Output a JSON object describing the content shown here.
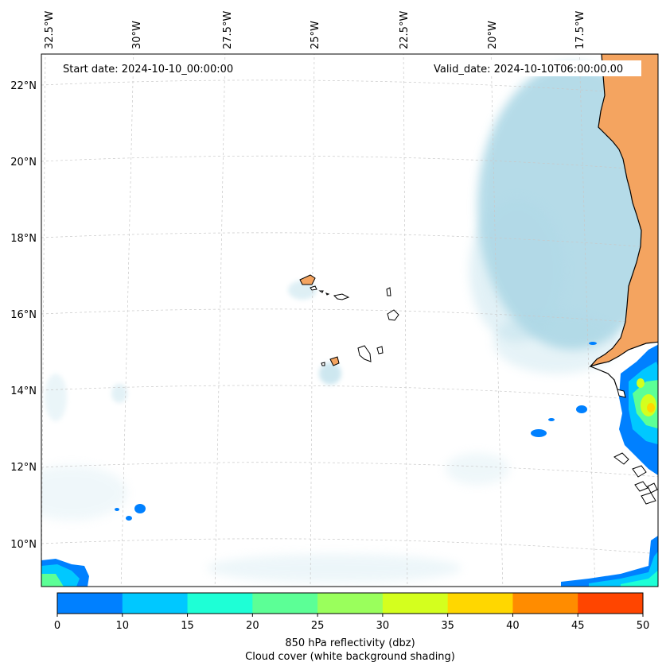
{
  "header": {
    "start_date": "Start date: 2024-10-10_00:00:00",
    "valid_date": "Valid_date: 2024-10-10T06:00:00.00"
  },
  "map": {
    "lon_labels": [
      "32.5°W",
      "30°W",
      "27.5°W",
      "25°W",
      "22.5°W",
      "20°W",
      "17.5°W"
    ],
    "lat_labels": [
      "22°N",
      "20°N",
      "18°N",
      "16°N",
      "14°N",
      "12°N",
      "10°N"
    ],
    "colors": {
      "land": "#f4a460",
      "cloud": "#add8e6",
      "coast": "#000000",
      "grid": "#c8c8c8"
    }
  },
  "colorbar": {
    "ticks": [
      "0",
      "10",
      "15",
      "20",
      "25",
      "30",
      "35",
      "40",
      "45",
      "50"
    ],
    "colors": [
      "#0080ff",
      "#00c8ff",
      "#1effd6",
      "#5cff96",
      "#9aff5c",
      "#d4ff1e",
      "#ffd700",
      "#ff8c00",
      "#ff4500"
    ],
    "label_line1": "850 hPa reflectivity (dbz)",
    "label_line2": "Cloud cover (white background shading)"
  }
}
